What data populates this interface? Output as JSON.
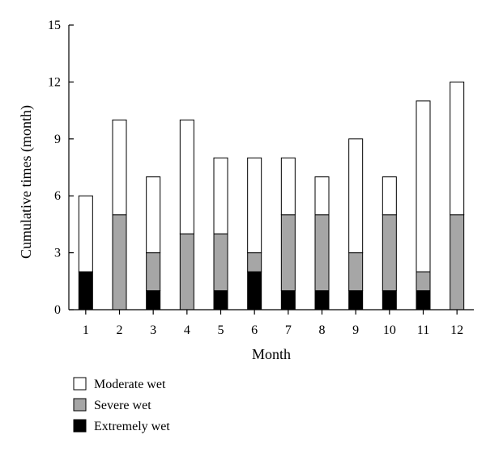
{
  "chart_data": {
    "type": "bar",
    "stacked": true,
    "xlabel": "Month",
    "ylabel": "Cumulative times (month)",
    "categories": [
      "1",
      "2",
      "3",
      "4",
      "5",
      "6",
      "7",
      "8",
      "9",
      "10",
      "11",
      "12"
    ],
    "ylim": [
      0,
      15
    ],
    "yticks": [
      0,
      3,
      6,
      9,
      12,
      15
    ],
    "grid": false,
    "legend_position": "bottom-left",
    "series": [
      {
        "name": "Extremely wet",
        "color": "#000000",
        "values": [
          2,
          0,
          1,
          0,
          1,
          2,
          1,
          1,
          1,
          1,
          1,
          0
        ]
      },
      {
        "name": "Severe wet",
        "color": "#a6a6a6",
        "values": [
          0,
          5,
          2,
          4,
          3,
          1,
          4,
          4,
          2,
          4,
          1,
          5
        ]
      },
      {
        "name": "Moderate wet",
        "color": "#ffffff",
        "values": [
          4,
          5,
          4,
          6,
          4,
          5,
          3,
          2,
          6,
          2,
          9,
          7
        ]
      }
    ],
    "legend_order": [
      "Moderate wet",
      "Severe wet",
      "Extremely wet"
    ]
  }
}
